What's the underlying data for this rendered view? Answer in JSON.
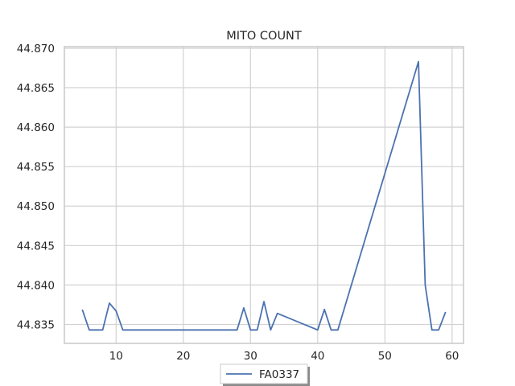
{
  "chart_data": {
    "type": "line",
    "title": "MITO COUNT",
    "xlabel": "",
    "ylabel": "",
    "xlim": [
      2.3,
      61.7
    ],
    "ylim": [
      44.8326,
      44.8702
    ],
    "xticks": [
      10,
      20,
      30,
      40,
      50,
      60
    ],
    "yticks": [
      44.835,
      44.84,
      44.845,
      44.85,
      44.855,
      44.86,
      44.865,
      44.87
    ],
    "ytick_labels": [
      "44.835",
      "44.840",
      "44.845",
      "44.850",
      "44.855",
      "44.860",
      "44.865",
      "44.870"
    ],
    "grid": true,
    "legend_placement": "bottom-center",
    "series": [
      {
        "name": "FA0337",
        "color": "#4c72b0",
        "x": [
          5,
          6,
          7,
          8,
          9,
          10,
          11,
          12,
          28,
          29,
          30,
          31,
          32,
          33,
          34,
          40,
          41,
          42,
          43,
          55,
          56,
          57,
          58,
          59
        ],
        "y": [
          44.8368,
          44.8343,
          44.8343,
          44.8343,
          44.8377,
          44.8367,
          44.8343,
          44.8343,
          44.8343,
          44.8371,
          44.8343,
          44.8343,
          44.8379,
          44.8343,
          44.8364,
          44.8343,
          44.8369,
          44.8343,
          44.8343,
          44.8683,
          44.84,
          44.8343,
          44.8343,
          44.8365
        ]
      }
    ]
  }
}
